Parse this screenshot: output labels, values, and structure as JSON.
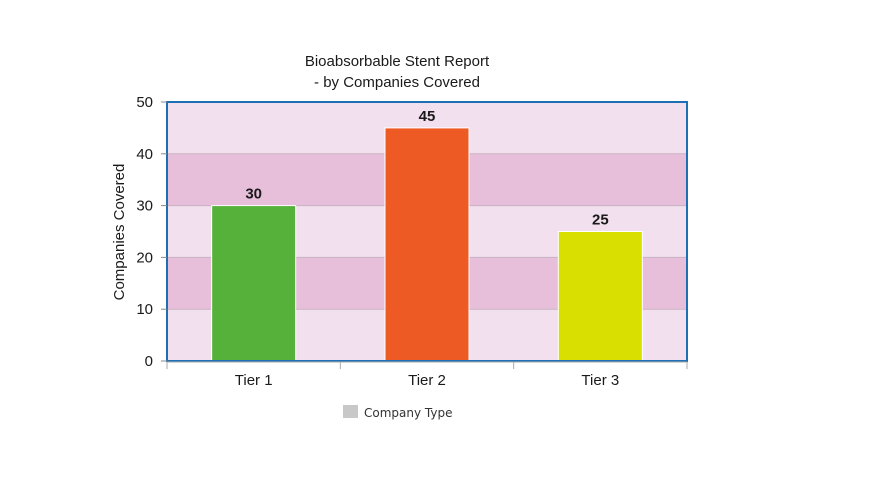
{
  "chart_data": {
    "type": "bar",
    "title_lines": [
      "Bioabsorbable Stent Report",
      "- by Companies Covered"
    ],
    "ylabel": "Companies Covered",
    "xlabel": "",
    "categories": [
      "Tier 1",
      "Tier 2",
      "Tier 3"
    ],
    "series": [
      {
        "name": "Company Type",
        "values": [
          30,
          45,
          25
        ]
      }
    ],
    "bar_colors": [
      "#55b13a",
      "#ee5a24",
      "#d9df00"
    ],
    "ylim": [
      0,
      50
    ],
    "yticks": [
      "0",
      "10",
      "20",
      "30",
      "40",
      "50"
    ],
    "data_labels": [
      "30",
      "45",
      "25"
    ],
    "legend": {
      "label": "Company Type",
      "color": "#c8c8c8",
      "placement": "bottom"
    },
    "colors": {
      "band_light": "#f2e0ee",
      "band_dark": "#e8bfdb",
      "frame": "#1f6fb5"
    }
  }
}
